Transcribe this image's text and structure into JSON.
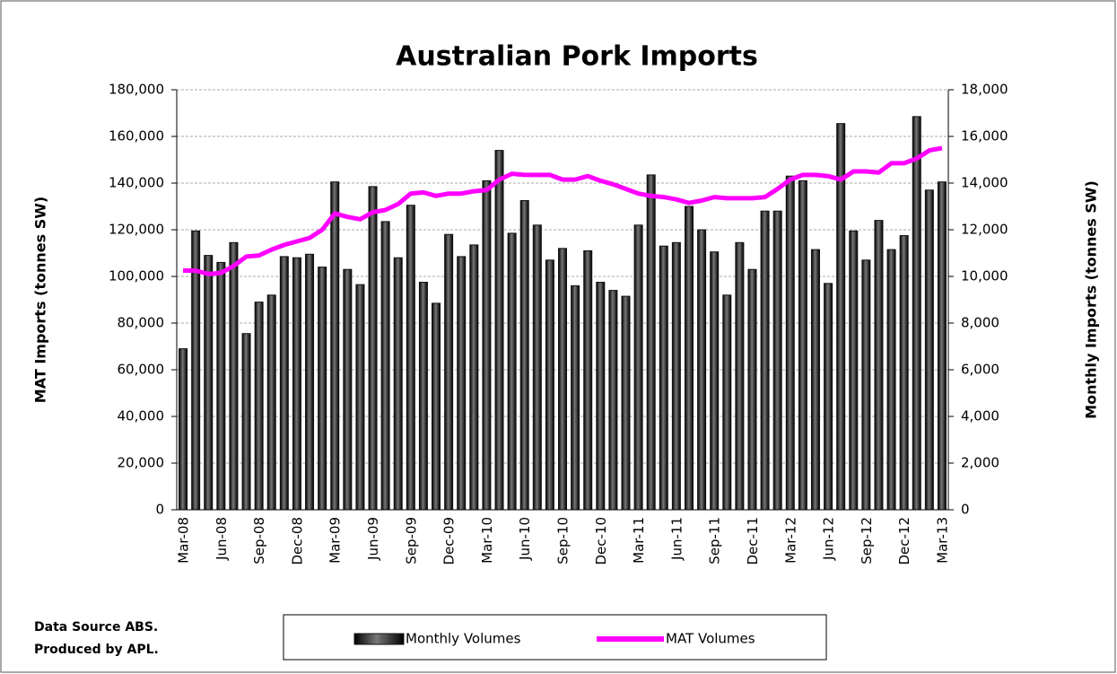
{
  "chart_data": {
    "type": "bar",
    "title": "Australian Pork Imports",
    "y_label": "MAT Imports (tonnes SW)",
    "y2_label": "Monthly Imports (tonnes SW)",
    "notes": [
      "Data Source ABS.",
      "Produced by APL."
    ],
    "categories": [
      "Mar-08",
      null,
      null,
      "Jun-08",
      null,
      null,
      "Sep-08",
      null,
      null,
      "Dec-08",
      null,
      null,
      "Mar-09",
      null,
      null,
      "Jun-09",
      null,
      null,
      "Sep-09",
      null,
      null,
      "Dec-09",
      null,
      null,
      "Mar-10",
      null,
      null,
      "Jun-10",
      null,
      null,
      "Sep-10",
      null,
      null,
      "Dec-10",
      null,
      null,
      "Mar-11",
      null,
      null,
      "Jun-11",
      null,
      null,
      "Sep-11",
      null,
      null,
      "Dec-11",
      null,
      null,
      "Mar-12",
      null,
      null,
      "Jun-12",
      null,
      null,
      "Sep-12",
      null,
      null,
      "Dec-12",
      null,
      null,
      "Mar-13"
    ],
    "series": [
      {
        "name": "Monthly Volumes",
        "type": "bar",
        "axis": "y2",
        "color": "#111111",
        "values": [
          6900,
          11950,
          10900,
          10600,
          11450,
          7550,
          8900,
          9200,
          10850,
          10800,
          10950,
          10400,
          14050,
          10300,
          9650,
          13850,
          12350,
          10800,
          13050,
          9750,
          8850,
          11800,
          10850,
          11350,
          14100,
          15400,
          11850,
          13250,
          12200,
          10700,
          11200,
          9600,
          11100,
          9750,
          9400,
          9150,
          12200,
          14350,
          11300,
          11450,
          13000,
          12000,
          11050,
          9200,
          11450,
          10300,
          12800,
          12800,
          14300,
          14100,
          11150,
          9700,
          16550,
          11950,
          10700,
          12400,
          11150,
          11750,
          16850,
          13700,
          14050
        ]
      },
      {
        "name": "MAT Volumes",
        "type": "line",
        "color": "#ff00ff",
        "values": [
          102500,
          102500,
          101000,
          101500,
          104500,
          108500,
          109000,
          111500,
          113500,
          115000,
          116500,
          120000,
          127000,
          125500,
          124500,
          127500,
          128500,
          131000,
          135500,
          136000,
          134500,
          135500,
          135500,
          136500,
          137000,
          141500,
          144000,
          143500,
          143500,
          143500,
          141500,
          141500,
          143000,
          141000,
          139500,
          137500,
          135500,
          134500,
          134000,
          133000,
          131500,
          132500,
          134000,
          133500,
          133500,
          133500,
          134000,
          137500,
          141500,
          143500,
          143500,
          143000,
          141500,
          145000,
          145000,
          144500,
          148500,
          148500,
          150500,
          154000,
          155000
        ]
      }
    ],
    "ylim": [
      0,
      180000
    ],
    "yticks": [
      0,
      {
        "value": 20000,
        "label": "20,000"
      },
      {
        "value": 40000,
        "label": "40,000"
      },
      {
        "value": 60000,
        "label": "60,000"
      },
      {
        "value": 80000,
        "label": "80,000"
      },
      {
        "value": 100000,
        "label": "100,000"
      },
      {
        "value": 120000,
        "label": "120,000"
      },
      {
        "value": 140000,
        "label": "140,000"
      },
      {
        "value": 160000,
        "label": "160,000"
      },
      {
        "value": 180000,
        "label": "180,000"
      }
    ],
    "y2lim": [
      0,
      18000
    ],
    "y2ticks": [
      0,
      {
        "value": 2000,
        "label": "2,000"
      },
      {
        "value": 4000,
        "label": "4,000"
      },
      {
        "value": 6000,
        "label": "6,000"
      },
      {
        "value": 8000,
        "label": "8,000"
      },
      {
        "value": 10000,
        "label": "10,000"
      },
      {
        "value": 12000,
        "label": "12,000"
      },
      {
        "value": 14000,
        "label": "14,000"
      },
      {
        "value": 16000,
        "label": "16,000"
      },
      {
        "value": 18000,
        "label": "18,000"
      }
    ],
    "grid": true,
    "legend": "bottom"
  }
}
